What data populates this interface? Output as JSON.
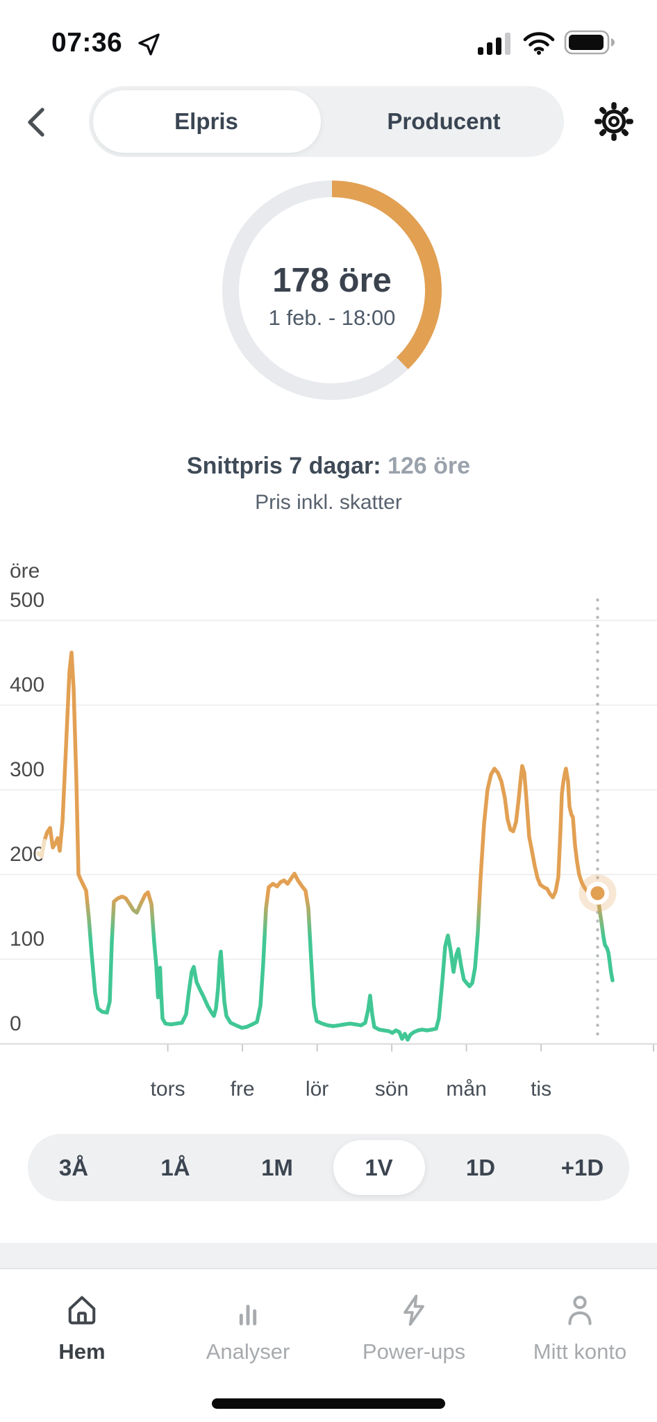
{
  "status_bar": {
    "time": "07:36"
  },
  "header": {
    "tabs": [
      {
        "label": "Elpris",
        "active": true
      },
      {
        "label": "Producent",
        "active": false
      }
    ]
  },
  "gauge": {
    "value_label": "178 öre",
    "datetime_label": "1 feb. - 18:00",
    "fraction": 0.378,
    "arc_color": "#e2a053",
    "track_color": "#e8eaed"
  },
  "summary": {
    "avg_label": "Snittpris 7 dagar:",
    "avg_value": "126 öre",
    "note": "Pris inkl. skatter"
  },
  "chart_data": {
    "type": "line",
    "ylabel": "öre",
    "ylim": [
      0,
      500
    ],
    "y_ticks": [
      0,
      100,
      200,
      300,
      400,
      500
    ],
    "x_ticks": [
      "tors",
      "fre",
      "lör",
      "sön",
      "mån",
      "tis"
    ],
    "grid": true,
    "unit": "öre",
    "colors": {
      "high": "#e2a053",
      "low": "#41c795",
      "halo": "rgba(226,160,83,0.25)",
      "fade_start": "#f4e1c4"
    },
    "selected_point": {
      "x_day": 5.757,
      "value": 178,
      "label": "1 feb. - 18:00"
    },
    "series": [
      {
        "name": "elpris",
        "points": [
          [
            -1.736,
            225
          ],
          [
            -1.69,
            222
          ],
          [
            -1.652,
            240
          ],
          [
            -1.615,
            250
          ],
          [
            -1.577,
            255
          ],
          [
            -1.54,
            232
          ],
          [
            -1.503,
            237
          ],
          [
            -1.475,
            243
          ],
          [
            -1.447,
            228
          ],
          [
            -1.41,
            262
          ],
          [
            -1.364,
            350
          ],
          [
            -1.317,
            440
          ],
          [
            -1.289,
            462
          ],
          [
            -1.261,
            420
          ],
          [
            -1.224,
            310
          ],
          [
            -1.196,
            200
          ],
          [
            -1.15,
            191
          ],
          [
            -1.094,
            181
          ],
          [
            -1.057,
            148
          ],
          [
            -1.019,
            105
          ],
          [
            -0.973,
            60
          ],
          [
            -0.936,
            42
          ],
          [
            -0.88,
            38
          ],
          [
            -0.815,
            37
          ],
          [
            -0.778,
            50
          ],
          [
            -0.75,
            120
          ],
          [
            -0.722,
            168
          ],
          [
            -0.666,
            172
          ],
          [
            -0.61,
            174
          ],
          [
            -0.564,
            172
          ],
          [
            -0.517,
            166
          ],
          [
            -0.461,
            158
          ],
          [
            -0.415,
            155
          ],
          [
            -0.359,
            166
          ],
          [
            -0.303,
            176
          ],
          [
            -0.266,
            179
          ],
          [
            -0.219,
            165
          ],
          [
            -0.182,
            120
          ],
          [
            -0.154,
            93
          ],
          [
            -0.131,
            55
          ],
          [
            -0.117,
            75
          ],
          [
            -0.103,
            90
          ],
          [
            -0.089,
            60
          ],
          [
            -0.071,
            30
          ],
          [
            -0.033,
            24
          ],
          [
            0.041,
            23
          ],
          [
            0.115,
            24
          ],
          [
            0.19,
            25
          ],
          [
            0.246,
            35
          ],
          [
            0.283,
            62
          ],
          [
            0.32,
            85
          ],
          [
            0.348,
            91
          ],
          [
            0.385,
            73
          ],
          [
            0.432,
            64
          ],
          [
            0.478,
            56
          ],
          [
            0.534,
            45
          ],
          [
            0.58,
            38
          ],
          [
            0.618,
            33
          ],
          [
            0.646,
            42
          ],
          [
            0.673,
            65
          ],
          [
            0.697,
            100
          ],
          [
            0.711,
            109
          ],
          [
            0.729,
            85
          ],
          [
            0.757,
            50
          ],
          [
            0.785,
            33
          ],
          [
            0.841,
            25
          ],
          [
            0.915,
            22
          ],
          [
            0.99,
            19
          ],
          [
            1.055,
            20
          ],
          [
            1.129,
            23
          ],
          [
            1.194,
            26
          ],
          [
            1.241,
            45
          ],
          [
            1.278,
            95
          ],
          [
            1.315,
            160
          ],
          [
            1.352,
            185
          ],
          [
            1.408,
            189
          ],
          [
            1.464,
            186
          ],
          [
            1.511,
            191
          ],
          [
            1.557,
            193
          ],
          [
            1.604,
            189
          ],
          [
            1.65,
            195
          ],
          [
            1.697,
            201
          ],
          [
            1.743,
            193
          ],
          [
            1.799,
            186
          ],
          [
            1.845,
            181
          ],
          [
            1.883,
            160
          ],
          [
            1.92,
            100
          ],
          [
            1.957,
            45
          ],
          [
            1.994,
            27
          ],
          [
            2.069,
            24
          ],
          [
            2.143,
            22
          ],
          [
            2.217,
            21
          ],
          [
            2.292,
            22
          ],
          [
            2.366,
            23
          ],
          [
            2.441,
            24
          ],
          [
            2.515,
            23
          ],
          [
            2.59,
            22
          ],
          [
            2.645,
            25
          ],
          [
            2.683,
            40
          ],
          [
            2.71,
            57
          ],
          [
            2.738,
            35
          ],
          [
            2.766,
            20
          ],
          [
            2.831,
            17
          ],
          [
            2.896,
            16
          ],
          [
            2.962,
            15
          ],
          [
            3.008,
            13
          ],
          [
            3.055,
            16
          ],
          [
            3.101,
            14
          ],
          [
            3.138,
            6
          ],
          [
            3.176,
            12
          ],
          [
            3.213,
            5
          ],
          [
            3.25,
            11
          ],
          [
            3.297,
            14
          ],
          [
            3.352,
            16
          ],
          [
            3.408,
            17
          ],
          [
            3.473,
            16
          ],
          [
            3.539,
            17
          ],
          [
            3.594,
            18
          ],
          [
            3.631,
            30
          ],
          [
            3.678,
            75
          ],
          [
            3.715,
            115
          ],
          [
            3.752,
            128
          ],
          [
            3.789,
            110
          ],
          [
            3.827,
            85
          ],
          [
            3.864,
            105
          ],
          [
            3.892,
            112
          ],
          [
            3.929,
            92
          ],
          [
            3.966,
            76
          ],
          [
            4.003,
            72
          ],
          [
            4.041,
            68
          ],
          [
            4.078,
            72
          ],
          [
            4.115,
            90
          ],
          [
            4.152,
            130
          ],
          [
            4.189,
            195
          ],
          [
            4.236,
            260
          ],
          [
            4.282,
            300
          ],
          [
            4.329,
            318
          ],
          [
            4.375,
            325
          ],
          [
            4.422,
            320
          ],
          [
            4.468,
            310
          ],
          [
            4.515,
            290
          ],
          [
            4.552,
            265
          ],
          [
            4.589,
            253
          ],
          [
            4.626,
            251
          ],
          [
            4.664,
            262
          ],
          [
            4.701,
            290
          ],
          [
            4.729,
            315
          ],
          [
            4.747,
            328
          ],
          [
            4.775,
            320
          ],
          [
            4.803,
            290
          ],
          [
            4.84,
            245
          ],
          [
            4.877,
            228
          ],
          [
            4.915,
            210
          ],
          [
            4.952,
            196
          ],
          [
            4.989,
            188
          ],
          [
            5.036,
            185
          ],
          [
            5.082,
            183
          ],
          [
            5.119,
            177
          ],
          [
            5.157,
            173
          ],
          [
            5.194,
            180
          ],
          [
            5.231,
            197
          ],
          [
            5.259,
            250
          ],
          [
            5.278,
            295
          ],
          [
            5.296,
            308
          ],
          [
            5.315,
            318
          ],
          [
            5.333,
            325
          ],
          [
            5.361,
            310
          ],
          [
            5.38,
            280
          ],
          [
            5.408,
            270
          ],
          [
            5.426,
            268
          ],
          [
            5.454,
            235
          ],
          [
            5.482,
            215
          ],
          [
            5.51,
            200
          ],
          [
            5.547,
            190
          ],
          [
            5.584,
            184
          ],
          [
            5.631,
            179
          ],
          [
            5.677,
            177
          ],
          [
            5.715,
            176
          ],
          [
            5.757,
            178
          ],
          [
            5.78,
            160
          ],
          [
            5.808,
            144
          ],
          [
            5.836,
            126
          ],
          [
            5.855,
            117
          ],
          [
            5.883,
            113
          ],
          [
            5.901,
            108
          ],
          [
            5.92,
            96
          ],
          [
            5.938,
            84
          ],
          [
            5.957,
            75
          ]
        ]
      }
    ]
  },
  "range_selector": {
    "options": [
      "3Å",
      "1Å",
      "1M",
      "1V",
      "1D",
      "+1D"
    ],
    "selected": "1V"
  },
  "bottom_nav": {
    "items": [
      {
        "label": "Hem",
        "icon": "home-icon",
        "active": true
      },
      {
        "label": "Analyser",
        "icon": "bar-chart-icon",
        "active": false
      },
      {
        "label": "Power-ups",
        "icon": "lightning-icon",
        "active": false
      },
      {
        "label": "Mitt konto",
        "icon": "person-icon",
        "active": false
      }
    ]
  }
}
